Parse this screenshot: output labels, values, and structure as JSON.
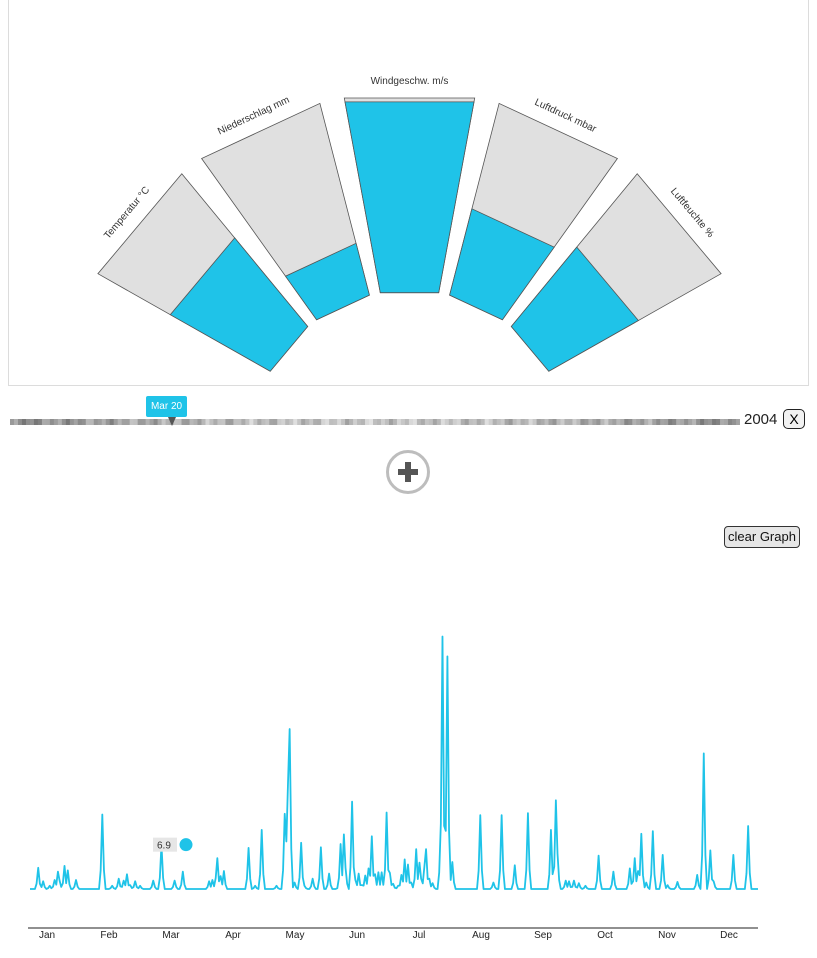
{
  "gauges": {
    "segments": [
      {
        "label": "Temperatur °C",
        "fill": 0.58
      },
      {
        "label": "Niederschlag mm",
        "fill": 0.27
      },
      {
        "label": "Windgeschw. m/s",
        "fill": 0.98
      },
      {
        "label": "Luftdruck mbar",
        "fill": 0.45
      },
      {
        "label": "Luftfeuchte %",
        "fill": 0.52
      }
    ],
    "colors": {
      "fill": "#1fc3e8",
      "empty": "#e0e0e0",
      "stroke": "#555555"
    }
  },
  "timeline": {
    "year": "2004",
    "selected_date": "Mar 20",
    "close_label": "X"
  },
  "controls": {
    "add_label": "+",
    "clear_label": "clear Graph"
  },
  "chart_data": {
    "type": "line",
    "x_unit": "day of year 2004",
    "ylim": [
      0,
      40
    ],
    "series_color": "#1fc3e8",
    "months": [
      "Jan",
      "Feb",
      "Mar",
      "Apr",
      "May",
      "Jun",
      "Jul",
      "Aug",
      "Sep",
      "Oct",
      "Nov",
      "Dec"
    ],
    "highlight": {
      "day": 80,
      "date": "Mar 20",
      "value": 6.9
    },
    "peaks": [
      [
        5,
        3.3
      ],
      [
        8,
        1.2
      ],
      [
        12,
        0.5
      ],
      [
        15,
        1.4
      ],
      [
        17,
        2.7
      ],
      [
        18,
        1.3
      ],
      [
        21,
        3.6
      ],
      [
        23,
        2.9
      ],
      [
        28,
        1.4
      ],
      [
        44,
        11.6
      ],
      [
        50,
        0.5
      ],
      [
        54,
        1.6
      ],
      [
        57,
        1.3
      ],
      [
        59,
        2.3
      ],
      [
        61,
        0.6
      ],
      [
        64,
        1.2
      ],
      [
        67,
        0.5
      ],
      [
        75,
        1.3
      ],
      [
        80,
        6.9
      ],
      [
        88,
        1.3
      ],
      [
        93,
        2.7
      ],
      [
        109,
        1.2
      ],
      [
        111,
        1.4
      ],
      [
        113,
        1.7
      ],
      [
        114,
        4.8
      ],
      [
        116,
        2.0
      ],
      [
        118,
        2.8
      ],
      [
        133,
        6.4
      ],
      [
        137,
        0.5
      ],
      [
        141,
        9.2
      ],
      [
        150,
        0.5
      ],
      [
        155,
        11.7
      ],
      [
        156,
        7.4
      ],
      [
        157,
        16.5
      ],
      [
        158,
        24.9
      ],
      [
        161,
        1.0
      ],
      [
        165,
        7.2
      ],
      [
        167,
        0.5
      ],
      [
        172,
        1.6
      ],
      [
        177,
        6.5
      ],
      [
        182,
        2.4
      ],
      [
        188,
        0.5
      ],
      [
        189,
        7.0
      ],
      [
        191,
        8.5
      ],
      [
        192,
        3.3
      ],
      [
        196,
        13.6
      ],
      [
        198,
        1.4
      ],
      [
        200,
        2.4
      ],
      [
        202,
        0.6
      ],
      [
        204,
        2.1
      ],
      [
        206,
        3.2
      ],
      [
        208,
        8.2
      ],
      [
        210,
        2.3
      ],
      [
        212,
        2.6
      ],
      [
        214,
        2.6
      ],
      [
        217,
        11.9
      ],
      [
        219,
        2.5
      ],
      [
        221,
        0.8
      ],
      [
        224,
        0.5
      ],
      [
        226,
        2.2
      ],
      [
        228,
        4.6
      ],
      [
        230,
        3.8
      ],
      [
        232,
        1.0
      ],
      [
        235,
        6.2
      ],
      [
        237,
        4.1
      ],
      [
        238,
        1.6
      ],
      [
        240,
        3.5
      ],
      [
        241,
        6.2
      ],
      [
        243,
        1.6
      ],
      [
        245,
        0.9
      ],
      [
        250,
        10.2
      ],
      [
        251,
        39.3
      ],
      [
        252,
        5.0
      ],
      [
        253,
        1.8
      ],
      [
        254,
        36.2
      ],
      [
        256,
        1.4
      ],
      [
        257,
        4.2
      ],
      [
        274,
        11.5
      ],
      [
        282,
        1.0
      ],
      [
        287,
        11.5
      ],
      [
        295,
        3.7
      ],
      [
        303,
        11.8
      ],
      [
        317,
        9.2
      ],
      [
        320,
        13.8
      ],
      [
        321,
        5.5
      ],
      [
        326,
        1.3
      ],
      [
        328,
        1.2
      ],
      [
        331,
        1.3
      ],
      [
        334,
        0.9
      ],
      [
        338,
        0.5
      ],
      [
        346,
        5.2
      ],
      [
        355,
        2.7
      ],
      [
        365,
        3.2
      ],
      [
        368,
        4.8
      ],
      [
        370,
        2.8
      ],
      [
        372,
        8.6
      ],
      [
        375,
        1.0
      ],
      [
        379,
        9.0
      ],
      [
        385,
        5.3
      ],
      [
        388,
        0.6
      ],
      [
        394,
        1.1
      ],
      [
        406,
        2.2
      ],
      [
        410,
        21.1
      ],
      [
        414,
        6.0
      ],
      [
        416,
        1.2
      ],
      [
        428,
        5.3
      ],
      [
        437,
        9.8
      ]
    ]
  }
}
